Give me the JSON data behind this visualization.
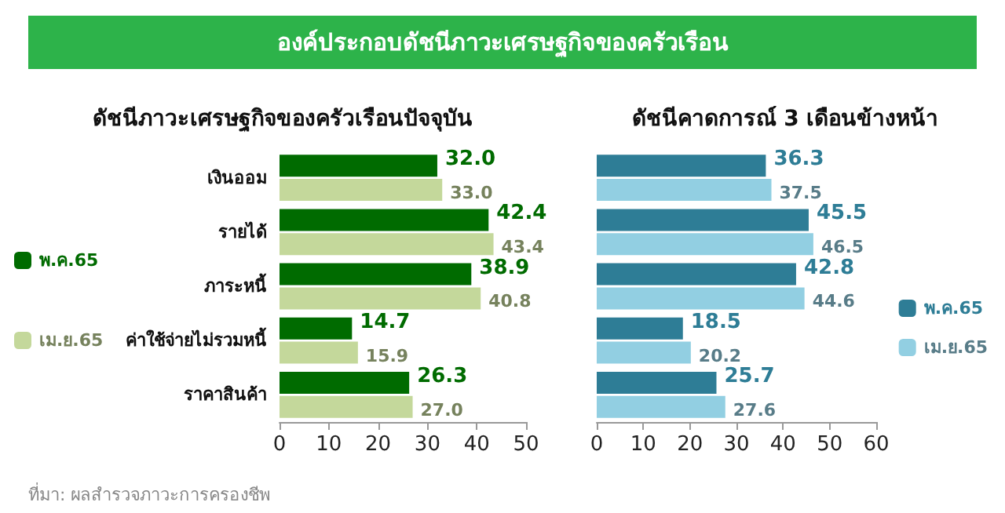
{
  "chart_data": [
    {
      "type": "other",
      "title": "องค์ประกอบดัชนีภาวะเศรษฐกิจของครัวเรือน"
    },
    {
      "type": "bar",
      "orientation": "horizontal",
      "title": "ดัชนีภาวะเศรษฐกิจของครัวเรือนปัจจุบัน",
      "categories": [
        "เงินออม",
        "รายได้",
        "ภาระหนี้",
        "ค่าใช้จ่ายไม่รวมหนี้",
        "ราคาสินค้า"
      ],
      "series": [
        {
          "name": "พ.ค.65",
          "color": "#006b00",
          "values": [
            32.0,
            42.4,
            38.9,
            14.7,
            26.3
          ],
          "value_labels": [
            "32.0",
            "42.4",
            "38.9",
            "14.7",
            "26.3"
          ]
        },
        {
          "name": "เม.ย.65",
          "color": "#c4d89b",
          "values": [
            33.0,
            43.4,
            40.8,
            15.9,
            27.0
          ],
          "value_labels": [
            "33.0",
            "43.4",
            "40.8",
            "15.9",
            "27.0"
          ]
        }
      ],
      "xlim": [
        0,
        50
      ],
      "xticks": [
        0,
        10,
        20,
        30,
        40,
        50
      ],
      "grid": false,
      "legend": "left",
      "annotations": [
        "ที่มา: ผลสำรวจภาวะการครองชีพ"
      ]
    },
    {
      "type": "bar",
      "orientation": "horizontal",
      "title": "ดัชนีคาดการณ์ 3 เดือนข้างหน้า",
      "categories": [
        null,
        null,
        null,
        null,
        null
      ],
      "series": [
        {
          "name": "พ.ค.65",
          "color": "#2e7d96",
          "values": [
            36.3,
            45.5,
            42.8,
            18.5,
            25.7
          ]
        },
        {
          "name": "เม.ย.65",
          "color": "#92cfe2",
          "values": [
            37.5,
            46.5,
            44.6,
            20.2,
            27.6
          ]
        }
      ],
      "xlim": [
        0,
        60
      ],
      "xticks": [
        0,
        10,
        20,
        30,
        40,
        50,
        60
      ],
      "data_labels": true,
      "grid": false,
      "legend": "bottom right"
    }
  ]
}
